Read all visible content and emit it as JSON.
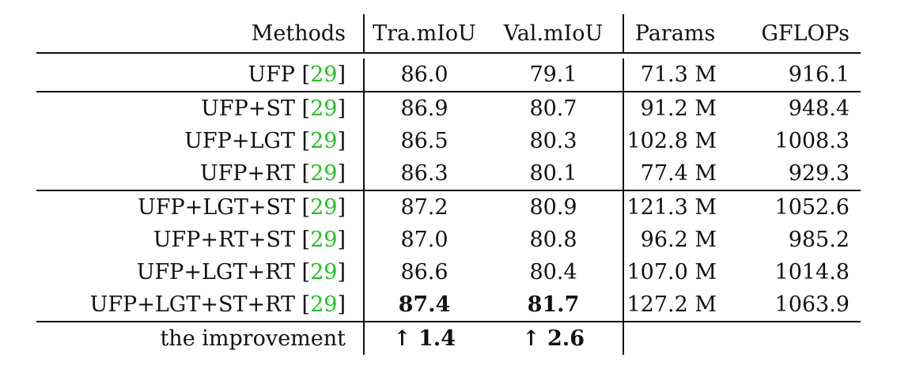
{
  "table": {
    "headers": [
      "Methods",
      "Tra.mIoU",
      "Val.mIoU",
      "Params",
      "GFLOPs"
    ],
    "groups": [
      [
        {
          "method": "UFP",
          "cite": "29",
          "tra": "86.0",
          "val": "79.1",
          "params": "71.3 M",
          "gflops": "916.1"
        }
      ],
      [
        {
          "method": "UFP+ST",
          "cite": "29",
          "tra": "86.9",
          "val": "80.7",
          "params": "91.2 M",
          "gflops": "948.4"
        },
        {
          "method": "UFP+LGT",
          "cite": "29",
          "tra": "86.5",
          "val": "80.3",
          "params": "102.8 M",
          "gflops": "1008.3"
        },
        {
          "method": "UFP+RT",
          "cite": "29",
          "tra": "86.3",
          "val": "80.1",
          "params": "77.4 M",
          "gflops": "929.3"
        }
      ],
      [
        {
          "method": "UFP+LGT+ST",
          "cite": "29",
          "tra": "87.2",
          "val": "80.9",
          "params": "121.3 M",
          "gflops": "1052.6"
        },
        {
          "method": "UFP+RT+ST",
          "cite": "29",
          "tra": "87.0",
          "val": "80.8",
          "params": "96.2 M",
          "gflops": "985.2"
        },
        {
          "method": "UFP+LGT+RT",
          "cite": "29",
          "tra": "86.6",
          "val": "80.4",
          "params": "107.0 M",
          "gflops": "1014.8"
        },
        {
          "method": "UFP+LGT+ST+RT",
          "cite": "29",
          "tra": "87.4",
          "val": "81.7",
          "params": "127.2 M",
          "gflops": "1063.9",
          "bold": true
        }
      ]
    ],
    "improvement": {
      "label": "the improvement",
      "tra": "↑ 1.4",
      "val": "↑ 2.6"
    }
  }
}
